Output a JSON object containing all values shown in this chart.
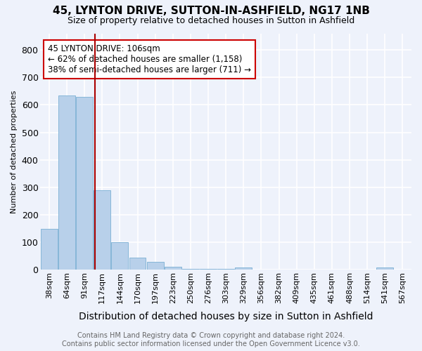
{
  "title1": "45, LYNTON DRIVE, SUTTON-IN-ASHFIELD, NG17 1NB",
  "title2": "Size of property relative to detached houses in Sutton in Ashfield",
  "xlabel": "Distribution of detached houses by size in Sutton in Ashfield",
  "ylabel": "Number of detached properties",
  "footer1": "Contains HM Land Registry data © Crown copyright and database right 2024.",
  "footer2": "Contains public sector information licensed under the Open Government Licence v3.0.",
  "categories": [
    "38sqm",
    "64sqm",
    "91sqm",
    "117sqm",
    "144sqm",
    "170sqm",
    "197sqm",
    "223sqm",
    "250sqm",
    "276sqm",
    "303sqm",
    "329sqm",
    "356sqm",
    "382sqm",
    "409sqm",
    "435sqm",
    "461sqm",
    "488sqm",
    "514sqm",
    "541sqm",
    "567sqm"
  ],
  "values": [
    150,
    635,
    628,
    290,
    100,
    45,
    30,
    12,
    5,
    5,
    5,
    10,
    2,
    0,
    0,
    0,
    0,
    0,
    0,
    8,
    0
  ],
  "bar_color": "#b8d0ea",
  "bar_edge_color": "#7aafd4",
  "background_color": "#eef2fb",
  "grid_color": "#ffffff",
  "vline_color": "#aa0000",
  "annotation_line1": "45 LYNTON DRIVE: 106sqm",
  "annotation_line2": "← 62% of detached houses are smaller (1,158)",
  "annotation_line3": "38% of semi-detached houses are larger (711) →",
  "annotation_box_color": "#ffffff",
  "annotation_box_edge": "#cc0000",
  "ylim": [
    0,
    860
  ],
  "yticks": [
    0,
    100,
    200,
    300,
    400,
    500,
    600,
    700,
    800
  ],
  "title1_fontsize": 11,
  "title2_fontsize": 9,
  "ylabel_fontsize": 8,
  "xlabel_fontsize": 10,
  "tick_fontsize": 8,
  "footer_fontsize": 7
}
